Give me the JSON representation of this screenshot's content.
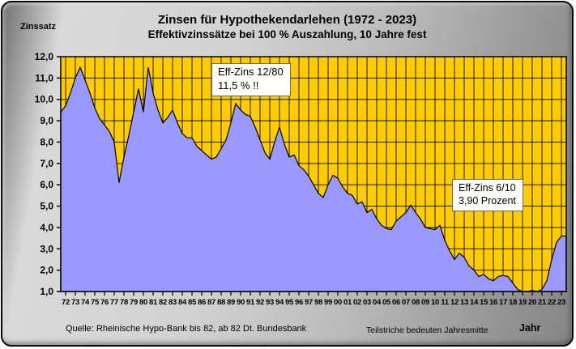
{
  "header": {
    "corner_label": "Zinssatz",
    "title": "Zinsen für Hypothekendarlehen (1972 - 2023)",
    "subtitle": "Effektivzinssätze bei 100 % Auszahlung,  10 Jahre fest"
  },
  "annotations": [
    {
      "line1": "Eff-Zins 12/80",
      "line2": "11,5 %  !!"
    },
    {
      "line1": "Eff-Zins 6/10",
      "line2": "3,90 Prozent"
    }
  ],
  "footer": {
    "source": "Quelle: Rheinische Hypo-Bank bis 82, ab 82 Dt. Bundesbank",
    "note": "Teilstriche bedeuten Jahresmitte",
    "xaxis_title": "Jahr"
  },
  "colors": {
    "plot_background": "#FFCC00",
    "area_fill": "#9999FF",
    "line_stroke": "#000000",
    "gridline": "#1a1a1a",
    "frame_silver": "#bcbcbc",
    "annotation_bg": "#FFFFFE"
  },
  "chart_data": {
    "type": "area",
    "title": "Zinsen für Hypothekendarlehen (1972 - 2023)",
    "subtitle": "Effektivzinssätze bei 100 % Auszahlung, 10 Jahre fest",
    "ylabel": "Zinssatz",
    "xlabel": "Jahr",
    "ylim": [
      1.0,
      12.0
    ],
    "ytick_step": 1.0,
    "ytick_labels": [
      "12,0",
      "11,0",
      "10,0",
      "9,0",
      "8,0",
      "7,0",
      "6,0",
      "5,0",
      "4,0",
      "3,0",
      "2,0",
      "1,0"
    ],
    "x_start": 1972.0,
    "x_step": 0.5,
    "x_end": 2023.5,
    "x_note": "half-yearly data points; axis ticks mark mid-year (Jahresmitte)",
    "grid": "both",
    "legend": "none",
    "xtick_labels": [
      "72",
      "73",
      "74",
      "75",
      "76",
      "77",
      "78",
      "79",
      "80",
      "81",
      "82",
      "83",
      "84",
      "85",
      "86",
      "87",
      "88",
      "89",
      "90",
      "91",
      "92",
      "93",
      "94",
      "95",
      "96",
      "97",
      "98",
      "99",
      "00",
      "01",
      "02",
      "03",
      "04",
      "05",
      "06",
      "07",
      "08",
      "09",
      "10",
      "11",
      "12",
      "13",
      "14",
      "15",
      "16",
      "17",
      "18",
      "19",
      "20",
      "21",
      "22",
      "23"
    ],
    "values": [
      9.4,
      9.7,
      10.3,
      11.0,
      11.5,
      10.9,
      10.3,
      9.6,
      9.1,
      8.8,
      8.5,
      8.0,
      6.1,
      7.3,
      8.3,
      9.4,
      10.5,
      9.4,
      11.5,
      10.3,
      9.5,
      8.9,
      9.15,
      9.5,
      8.9,
      8.4,
      8.2,
      8.2,
      7.8,
      7.6,
      7.4,
      7.2,
      7.3,
      7.7,
      8.1,
      8.9,
      9.8,
      9.5,
      9.3,
      9.2,
      8.7,
      8.1,
      7.5,
      7.2,
      8.0,
      8.7,
      7.9,
      7.3,
      7.4,
      6.9,
      6.7,
      6.4,
      6.0,
      5.6,
      5.4,
      6.0,
      6.45,
      6.3,
      5.9,
      5.6,
      5.5,
      5.1,
      5.2,
      4.7,
      4.85,
      4.4,
      4.1,
      3.95,
      3.9,
      4.3,
      4.5,
      4.7,
      5.05,
      4.7,
      4.4,
      4.0,
      3.95,
      3.9,
      4.1,
      3.4,
      2.9,
      2.5,
      2.8,
      2.6,
      2.2,
      2.0,
      1.7,
      1.8,
      1.6,
      1.5,
      1.7,
      1.75,
      1.7,
      1.4,
      1.1,
      1.0,
      1.0,
      1.05,
      1.0,
      1.1,
      1.5,
      2.5,
      3.3,
      3.6
    ],
    "annotated_points": [
      {
        "label": "Eff-Zins 12/80  11,5 % !!",
        "x": 1981.0,
        "y": 11.5
      },
      {
        "label": "Eff-Zins 6/10  3,90 Prozent",
        "x": 2010.5,
        "y": 3.9
      }
    ]
  }
}
